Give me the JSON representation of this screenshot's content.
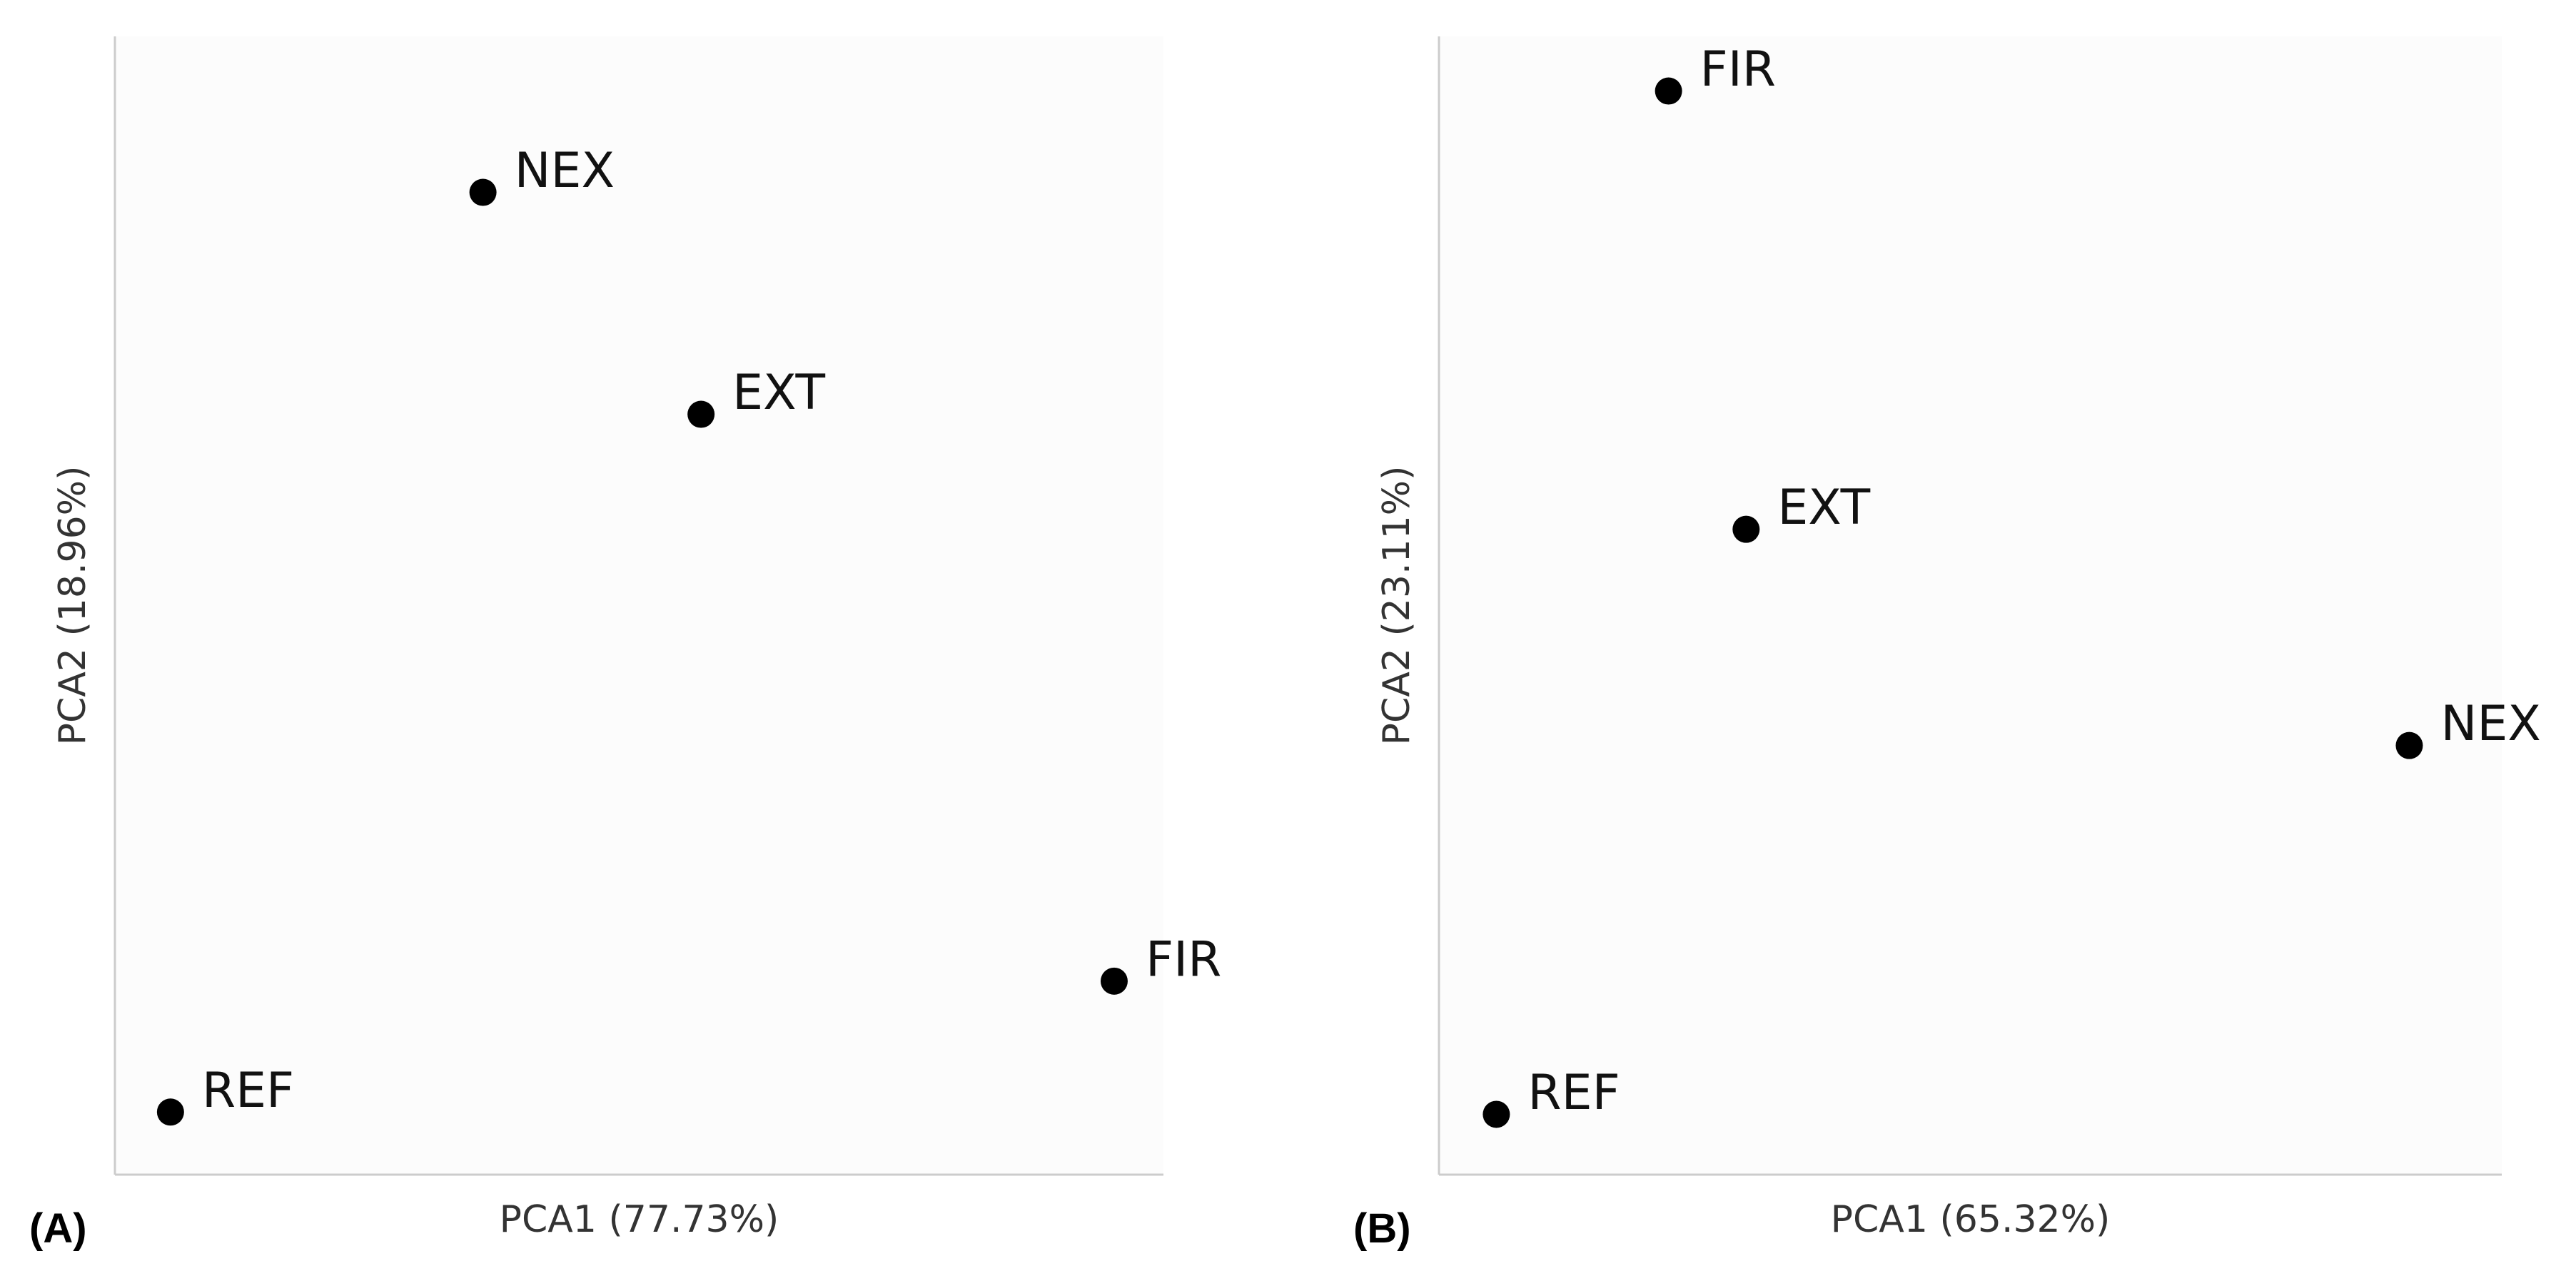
{
  "chart_data": [
    {
      "type": "scatter",
      "panel": "(A)",
      "xlabel": "PCA1 (77.73%)",
      "ylabel": "PCA2 (18.96%)",
      "labels": [
        "REF",
        "NEX",
        "EXT",
        "FIR"
      ],
      "x": [
        5.3,
        35.1,
        55.9,
        95.3
      ],
      "values": [
        5.5,
        86.3,
        66.8,
        17.0
      ],
      "xlim": [
        0,
        100
      ],
      "ylim": [
        0,
        100
      ],
      "color": "#000000"
    },
    {
      "type": "scatter",
      "panel": "(B)",
      "xlabel": "PCA1 (65.32%)",
      "ylabel": "PCA2 (23.11%)",
      "labels": [
        "FIR",
        "EXT",
        "NEX",
        "REF"
      ],
      "x": [
        21.6,
        28.9,
        91.3,
        5.4
      ],
      "values": [
        95.2,
        56.7,
        37.7,
        5.3
      ],
      "xlim": [
        0,
        100
      ],
      "ylim": [
        0,
        100
      ],
      "color": "#000000"
    }
  ]
}
